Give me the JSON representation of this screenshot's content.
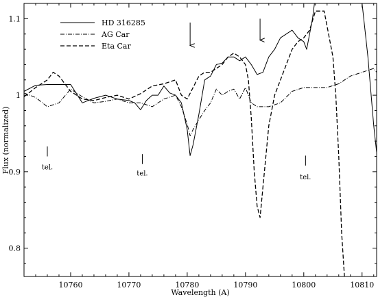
{
  "chart_data": {
    "type": "line",
    "title": "",
    "xlabel": "Wavelength (A)",
    "ylabel": "Flux (normalized)",
    "xlim": [
      10752,
      10812.5
    ],
    "ylim": [
      0.763,
      1.12
    ],
    "xticks": [
      10760,
      10770,
      10780,
      10790,
      10800,
      10810
    ],
    "yticks": [
      0.8,
      0.9,
      1.0,
      1.1
    ],
    "ytick_labels": [
      "0.8",
      "0.9",
      "1",
      "1.1"
    ],
    "grid": false,
    "legend_position": "top-left",
    "series": [
      {
        "name": "HD 316285",
        "style": "solid",
        "x": [
          10752,
          10754,
          10756,
          10758,
          10760,
          10762,
          10764,
          10766,
          10768,
          10770,
          10771,
          10772,
          10773,
          10774,
          10775,
          10776,
          10777,
          10778,
          10779,
          10780,
          10780.5,
          10781,
          10782,
          10783,
          10784,
          10785,
          10786,
          10787,
          10788,
          10789,
          10790,
          10791,
          10792,
          10793,
          10794,
          10795,
          10796,
          10797,
          10798,
          10799,
          10800,
          10800.5,
          10801,
          10801.5,
          10802,
          10803,
          10804,
          10805,
          10806,
          10807,
          10808,
          10809,
          10810,
          10811,
          10812,
          10812.5
        ],
        "y": [
          1.005,
          1.013,
          1.014,
          1.014,
          1.014,
          0.99,
          0.996,
          1.0,
          0.995,
          0.993,
          0.99,
          0.981,
          0.993,
          1.0,
          1.0,
          1.012,
          1.003,
          1.0,
          0.99,
          0.955,
          0.921,
          0.935,
          0.975,
          1.02,
          1.025,
          1.04,
          1.042,
          1.05,
          1.05,
          1.045,
          1.05,
          1.04,
          1.027,
          1.03,
          1.05,
          1.06,
          1.075,
          1.08,
          1.085,
          1.075,
          1.07,
          1.06,
          1.08,
          1.1,
          1.13,
          1.14,
          1.14,
          1.14,
          1.14,
          1.14,
          1.14,
          1.14,
          1.12,
          1.05,
          0.96,
          0.925
        ]
      },
      {
        "name": "AG Car",
        "style": "dashdot",
        "x": [
          10752,
          10754,
          10756,
          10758,
          10760,
          10762,
          10764,
          10766,
          10768,
          10770,
          10772,
          10774,
          10776,
          10778,
          10779,
          10780,
          10780.5,
          10781,
          10782,
          10783,
          10784,
          10785,
          10786,
          10787,
          10788,
          10789,
          10790,
          10791,
          10792,
          10794,
          10796,
          10798,
          10800,
          10802,
          10804,
          10806,
          10808,
          10810,
          10812,
          10812.5
        ],
        "y": [
          1.003,
          0.997,
          0.985,
          0.99,
          1.008,
          0.998,
          0.99,
          0.992,
          0.995,
          0.99,
          0.99,
          0.985,
          0.995,
          1.0,
          0.985,
          0.962,
          0.947,
          0.955,
          0.968,
          0.98,
          0.99,
          1.008,
          1.0,
          1.005,
          1.008,
          0.995,
          1.01,
          0.99,
          0.985,
          0.985,
          0.99,
          1.005,
          1.01,
          1.01,
          1.01,
          1.015,
          1.025,
          1.03,
          1.035,
          1.03
        ]
      },
      {
        "name": "Eta Car",
        "style": "dashed",
        "x": [
          10752,
          10754,
          10756,
          10757,
          10758,
          10760,
          10762,
          10764,
          10766,
          10768,
          10770,
          10772,
          10774,
          10776,
          10778,
          10779,
          10780,
          10781,
          10782,
          10783,
          10784,
          10785,
          10786,
          10787,
          10788,
          10789,
          10790,
          10790.5,
          10791,
          10791.5,
          10792,
          10792.5,
          10793,
          10794,
          10795,
          10796,
          10797,
          10798,
          10799,
          10800,
          10801,
          10802,
          10803,
          10803.5,
          10804,
          10805,
          10805.5,
          10806,
          10806.5,
          10807
        ],
        "y": [
          0.998,
          1.01,
          1.02,
          1.03,
          1.025,
          1.005,
          0.995,
          0.993,
          0.997,
          1.0,
          0.995,
          1.002,
          1.012,
          1.015,
          1.02,
          1.0,
          0.995,
          1.01,
          1.025,
          1.03,
          1.03,
          1.035,
          1.04,
          1.05,
          1.055,
          1.05,
          1.04,
          1.02,
          0.97,
          0.9,
          0.855,
          0.84,
          0.88,
          0.96,
          1.0,
          1.02,
          1.04,
          1.06,
          1.07,
          1.075,
          1.085,
          1.11,
          1.11,
          1.11,
          1.09,
          1.05,
          1.0,
          0.92,
          0.82,
          0.76
        ]
      }
    ],
    "annotations": [
      {
        "text": "tel.",
        "x": 10756,
        "y": 0.903,
        "mark_y_top": 0.933,
        "mark_y_bottom": 0.92
      },
      {
        "text": "tel.",
        "x": 10772.3,
        "y": 0.895,
        "mark_y_top": 0.923,
        "mark_y_bottom": 0.91
      },
      {
        "text": "tel.",
        "x": 10800.3,
        "y": 0.89,
        "mark_y_top": 0.921,
        "mark_y_bottom": 0.908
      }
    ],
    "arrows": [
      {
        "x": 10780.5,
        "y_top": 1.095,
        "y_bottom": 1.065
      },
      {
        "x": 10792.5,
        "y_top": 1.1,
        "y_bottom": 1.072
      }
    ]
  }
}
